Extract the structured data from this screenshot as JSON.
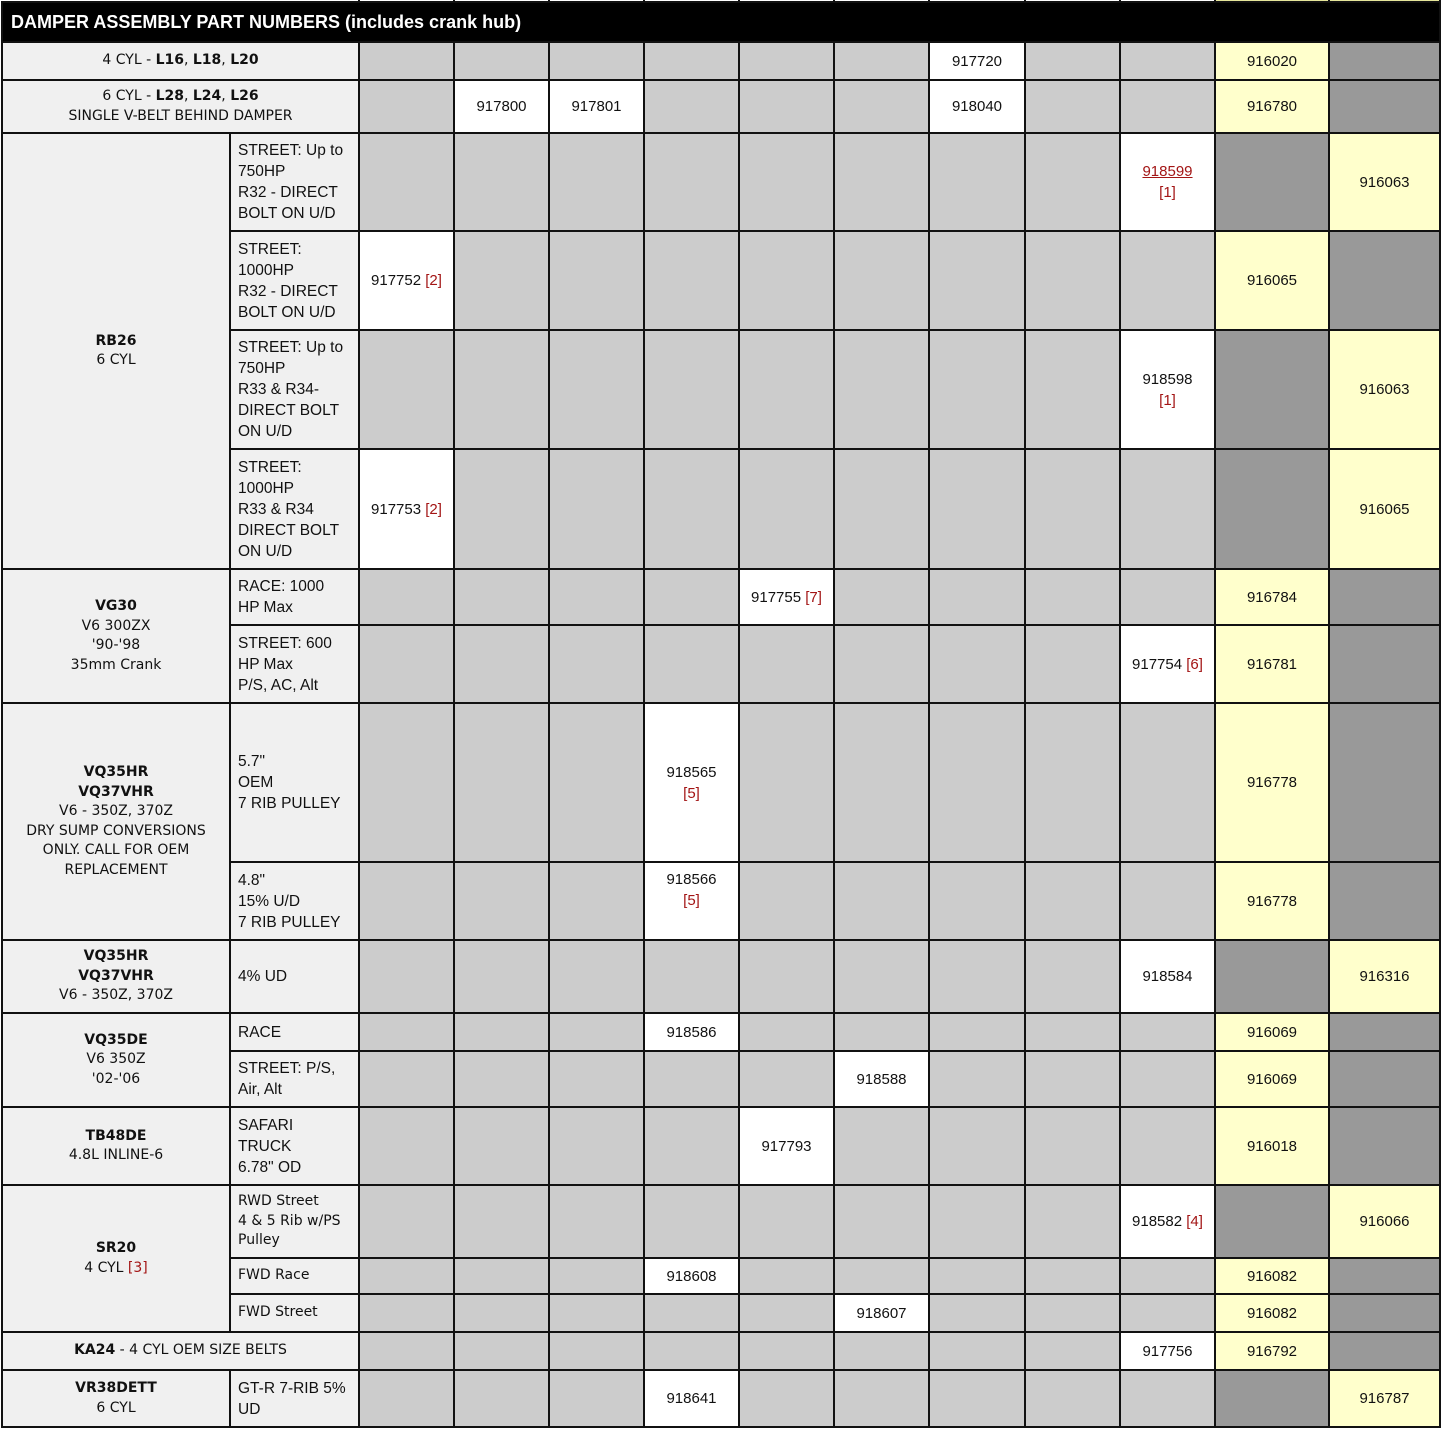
{
  "title": "DAMPER ASSEMBLY PART NUMBERS (includes crank hub)",
  "colors": {
    "header_bg": "#000000",
    "label_bg": "#f0f0f0",
    "unavailable": "#cccccc",
    "dark": "#999999",
    "available": "#ffffff",
    "highlight": "#ffffcc",
    "footnote": "#a31515"
  },
  "groups": [
    {
      "engine": [
        [
          {
            "t": "4 CYL - "
          },
          {
            "t": "L16",
            "b": true
          },
          {
            "t": ", "
          },
          {
            "t": "L18",
            "b": true
          },
          {
            "t": ", "
          },
          {
            "t": "L20",
            "b": true
          }
        ]
      ],
      "full": true,
      "rows": [
        {
          "cells": [
            "g",
            "g",
            "g",
            "g",
            "g",
            "g",
            {
              "pn": "917720",
              "c": "w"
            },
            "g",
            "g",
            {
              "pn": "916020",
              "c": "y"
            },
            "d"
          ]
        }
      ]
    },
    {
      "engine": [
        [
          {
            "t": "6 CYL - "
          },
          {
            "t": "L28",
            "b": true
          },
          {
            "t": ", "
          },
          {
            "t": "L24",
            "b": true
          },
          {
            "t": ", "
          },
          {
            "t": "L26",
            "b": true
          }
        ],
        [
          {
            "t": "SINGLE V-BELT BEHIND DAMPER"
          }
        ]
      ],
      "full": true,
      "rows": [
        {
          "cells": [
            "g",
            {
              "pn": "917800",
              "c": "w"
            },
            {
              "pn": "917801",
              "c": "w"
            },
            "g",
            "g",
            "g",
            {
              "pn": "918040",
              "c": "w"
            },
            "g",
            "g",
            {
              "pn": "916780",
              "c": "y"
            },
            "d"
          ]
        }
      ]
    },
    {
      "engine": [
        [
          {
            "t": "RB26",
            "b": true
          }
        ],
        [
          {
            "t": "6 CYL"
          }
        ]
      ],
      "rows": [
        {
          "variant": [
            "STREET: Up to",
            "750HP",
            "R32 - DIRECT",
            "BOLT ON U/D"
          ],
          "cells": [
            "g",
            "g",
            "g",
            "g",
            "g",
            "g",
            "g",
            "g",
            {
              "pn": "918599",
              "note": "[1]",
              "link": true,
              "stack": true,
              "c": "w"
            },
            "d",
            {
              "pn": "916063",
              "c": "y"
            }
          ]
        },
        {
          "variant": [
            "STREET:",
            "1000HP",
            "R32 - DIRECT",
            "BOLT ON U/D"
          ],
          "cells": [
            {
              "pn": "917752",
              "note": "[2]",
              "c": "w"
            },
            "g",
            "g",
            "g",
            "g",
            "g",
            "g",
            "g",
            "g",
            {
              "pn": "916065",
              "c": "y"
            },
            "d"
          ]
        },
        {
          "variant": [
            "STREET: Up to",
            "750HP",
            "R33 & R34-",
            "DIRECT BOLT",
            "ON U/D"
          ],
          "cells": [
            "g",
            "g",
            "g",
            "g",
            "g",
            "g",
            "g",
            "g",
            {
              "pn": "918598",
              "note": "[1]",
              "stack": true,
              "c": "w"
            },
            "d",
            {
              "pn": "916063",
              "c": "y"
            }
          ]
        },
        {
          "variant": [
            "STREET:",
            "1000HP",
            "R33 & R34",
            "DIRECT BOLT",
            "ON U/D"
          ],
          "cells": [
            {
              "pn": "917753",
              "note": "[2]",
              "c": "w"
            },
            "g",
            "g",
            "g",
            "g",
            "g",
            "g",
            "g",
            "g",
            "d",
            {
              "pn": "916065",
              "c": "y"
            }
          ]
        }
      ]
    },
    {
      "engine": [
        [
          {
            "t": "VG30",
            "b": true
          }
        ],
        [
          {
            "t": "V6 300ZX"
          }
        ],
        [
          {
            "t": "'90-'98"
          }
        ],
        [
          {
            "t": "35mm Crank"
          }
        ]
      ],
      "rows": [
        {
          "variant": [
            "RACE: 1000",
            "HP Max"
          ],
          "cells": [
            "g",
            "g",
            "g",
            "g",
            {
              "pn": "917755",
              "note": "[7]",
              "c": "w"
            },
            "g",
            "g",
            "g",
            "g",
            {
              "pn": "916784",
              "c": "y"
            },
            "d"
          ]
        },
        {
          "variant": [
            "STREET: 600",
            "HP Max",
            "P/S, AC, Alt"
          ],
          "cells": [
            "g",
            "g",
            "g",
            "g",
            "g",
            "g",
            "g",
            "g",
            {
              "pn": "917754",
              "note": "[6]",
              "c": "w"
            },
            {
              "pn": "916781",
              "c": "y"
            },
            "d"
          ]
        }
      ]
    },
    {
      "engine": [
        [
          {
            "t": "VQ35HR",
            "b": true
          }
        ],
        [
          {
            "t": "VQ37VHR",
            "b": true
          }
        ],
        [
          {
            "t": "V6 - 350Z, 370Z"
          }
        ],
        [
          {
            "t": " "
          }
        ],
        [
          {
            "t": "DRY SUMP CONVERSIONS"
          }
        ],
        [
          {
            "t": "ONLY. CALL FOR OEM"
          }
        ],
        [
          {
            "t": "REPLACEMENT"
          }
        ]
      ],
      "rows": [
        {
          "variant": [
            "5.7\"",
            "OEM",
            "7 RIB PULLEY"
          ],
          "cells": [
            "g",
            "g",
            "g",
            {
              "pn": "918565",
              "note": "[5]",
              "stack": true,
              "c": "w"
            },
            "g",
            "g",
            "g",
            "g",
            "g",
            {
              "pn": "916778",
              "c": "y"
            },
            "d"
          ]
        },
        {
          "variant": [
            "4.8\"",
            "15% U/D",
            "7 RIB PULLEY"
          ],
          "cells": [
            "g",
            "g",
            "g",
            {
              "pn": "918566",
              "note": "[5]",
              "stack": true,
              "top": true,
              "c": "w"
            },
            "g",
            "g",
            "g",
            "g",
            "g",
            {
              "pn": "916778",
              "c": "y"
            },
            "d"
          ]
        }
      ]
    },
    {
      "engine": [
        [
          {
            "t": "VQ35HR",
            "b": true
          }
        ],
        [
          {
            "t": "VQ37VHR",
            "b": true
          }
        ],
        [
          {
            "t": "V6 - 350Z, 370Z"
          }
        ]
      ],
      "rows": [
        {
          "variant": [
            "4% UD"
          ],
          "cells": [
            "g",
            "g",
            "g",
            "g",
            "g",
            "g",
            "g",
            "g",
            {
              "pn": "918584",
              "c": "w"
            },
            "d",
            {
              "pn": "916316",
              "c": "y"
            }
          ]
        }
      ]
    },
    {
      "engine": [
        [
          {
            "t": "VQ35DE",
            "b": true
          }
        ],
        [
          {
            "t": "V6 350Z"
          }
        ],
        [
          {
            "t": "'02-'06"
          }
        ]
      ],
      "rows": [
        {
          "variant": [
            "RACE"
          ],
          "cells": [
            "g",
            "g",
            "g",
            {
              "pn": "918586",
              "c": "w"
            },
            "g",
            "g",
            "g",
            "g",
            "g",
            {
              "pn": "916069",
              "c": "y"
            },
            "d"
          ]
        },
        {
          "variant": [
            "STREET: P/S,",
            "Air, Alt"
          ],
          "cells": [
            "g",
            "g",
            "g",
            "g",
            "g",
            {
              "pn": "918588",
              "c": "w"
            },
            "g",
            "g",
            "g",
            {
              "pn": "916069",
              "c": "y"
            },
            "d"
          ]
        }
      ]
    },
    {
      "engine": [
        [
          {
            "t": "TB48DE",
            "b": true
          }
        ],
        [
          {
            "t": "4.8L INLINE-6"
          }
        ]
      ],
      "rows": [
        {
          "variant": [
            "SAFARI",
            "TRUCK",
            "6.78\" OD"
          ],
          "cells": [
            "g",
            "g",
            "g",
            "g",
            {
              "pn": "917793",
              "c": "w"
            },
            "g",
            "g",
            "g",
            "g",
            {
              "pn": "916018",
              "c": "y"
            },
            "d"
          ]
        }
      ]
    },
    {
      "engine": [
        [
          {
            "t": "SR20",
            "b": true
          }
        ],
        [
          {
            "t": "4 CYL "
          },
          {
            "t": "[3]",
            "r": true
          }
        ]
      ],
      "dv": true,
      "rows": [
        {
          "variant": [
            "RWD Street",
            "4 & 5 Rib w/PS",
            "Pulley"
          ],
          "cells": [
            "g",
            "g",
            "g",
            "g",
            "g",
            "g",
            "g",
            "g",
            {
              "pn": "918582",
              "note": "[4]",
              "c": "w"
            },
            "d",
            {
              "pn": "916066",
              "c": "y"
            }
          ]
        },
        {
          "variant": [
            "FWD Race"
          ],
          "cells": [
            "g",
            "g",
            "g",
            {
              "pn": "918608",
              "c": "w"
            },
            "g",
            "g",
            "g",
            "g",
            "g",
            {
              "pn": "916082",
              "c": "y"
            },
            "d"
          ]
        },
        {
          "variant": [
            "FWD Street"
          ],
          "cells": [
            "g",
            "g",
            "g",
            "g",
            "g",
            {
              "pn": "918607",
              "c": "w"
            },
            "g",
            "g",
            "g",
            {
              "pn": "916082",
              "c": "y"
            },
            "d"
          ]
        }
      ]
    },
    {
      "engine": [
        [
          {
            "t": "KA24",
            "b": true
          },
          {
            "t": " - 4 CYL OEM SIZE BELTS"
          }
        ]
      ],
      "full": true,
      "rows": [
        {
          "cells": [
            "g",
            "g",
            "g",
            "g",
            "g",
            "g",
            "g",
            "g",
            {
              "pn": "917756",
              "c": "w"
            },
            {
              "pn": "916792",
              "c": "y"
            },
            "d"
          ]
        }
      ]
    },
    {
      "engine": [
        [
          {
            "t": "VR38DETT",
            "b": true
          }
        ],
        [
          {
            "t": "6 CYL"
          }
        ]
      ],
      "rows": [
        {
          "variant": [
            "GT-R 7-RIB 5%",
            "UD"
          ],
          "cells": [
            "g",
            "g",
            "g",
            {
              "pn": "918641",
              "c": "w"
            },
            "g",
            "g",
            "g",
            "g",
            "g",
            "d",
            {
              "pn": "916787",
              "c": "y"
            }
          ]
        }
      ]
    }
  ]
}
